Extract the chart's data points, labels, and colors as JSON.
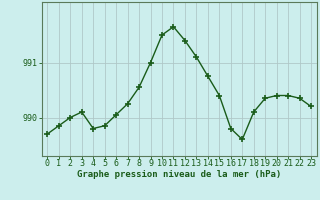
{
  "x": [
    0,
    1,
    2,
    3,
    4,
    5,
    6,
    7,
    8,
    9,
    10,
    11,
    12,
    13,
    14,
    15,
    16,
    17,
    18,
    19,
    20,
    21,
    22,
    23
  ],
  "y": [
    989.7,
    989.85,
    990.0,
    990.1,
    989.8,
    989.85,
    990.05,
    990.25,
    990.55,
    991.0,
    991.5,
    991.65,
    991.4,
    991.1,
    990.75,
    990.4,
    989.8,
    989.6,
    990.1,
    990.35,
    990.4,
    990.4,
    990.35,
    990.2
  ],
  "line_color": "#1a5c1a",
  "marker": "+",
  "marker_size": 4,
  "marker_linewidth": 1.2,
  "linewidth": 1.0,
  "bg_color": "#cceeed",
  "grid_color": "#b0c8c8",
  "xlabel": "Graphe pression niveau de la mer (hPa)",
  "xlabel_fontsize": 6.5,
  "ytick_values": [
    990,
    991
  ],
  "ylim": [
    989.3,
    992.1
  ],
  "xlim": [
    -0.5,
    23.5
  ],
  "tick_fontsize": 6,
  "tick_color": "#1a5c1a",
  "label_color": "#1a5c1a",
  "spine_color": "#5a7a5a"
}
